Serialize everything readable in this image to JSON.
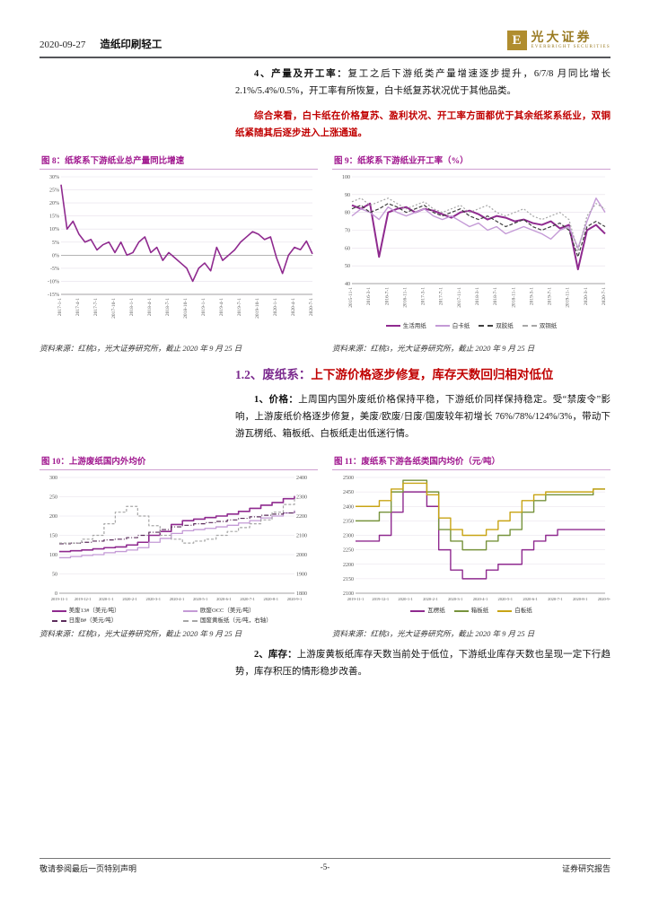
{
  "header": {
    "date": "2020-09-27",
    "category": "造纸印刷轻工",
    "brand_letter": "E",
    "brand_cn": "光大证券",
    "brand_en": "EVERBRIGHT SECURITIES",
    "brand_color": "#9a7b23"
  },
  "body": {
    "p1_label": "4、产量及开工率：",
    "p1_text": "复工之后下游纸类产量增速逐步提升，6/7/8 月同比增长 2.1%/5.4%/0.5%，开工率有所恢复，白卡纸复苏状况优于其他品类。",
    "p2_text": "综合来看，白卡纸在价格复苏、盈利状况、开工率方面都优于其余纸浆系纸业，双铜纸紧随其后逐步进入上涨通道。",
    "section_prefix": "1.2、废纸系：",
    "section_title": "上下游价格逐步修复，库存天数回归相对低位",
    "p3_label": "1、价格：",
    "p3_text": "上周国内国外废纸价格保持平稳，下游纸价同样保持稳定。受“禁废令”影响，上游废纸价格逐步修复，美废/欧废/日废/国废较年初增长 76%/78%/124%/3%，带动下游瓦楞纸、箱板纸、白板纸走出低迷行情。",
    "p4_label": "2、库存：",
    "p4_text": "上游废黄板纸库存天数当前处于低位，下游纸业库存天数也呈现一定下行趋势，库存积压的情形稳步改善。"
  },
  "figures": [
    {
      "title": "图 8：纸浆系下游纸业总产量同比增速",
      "source": "资料来源：红桃3，光大证券研究所，截止 2020 年 9 月 25 日"
    },
    {
      "title": "图 9：纸浆系下游纸业开工率（%）",
      "source": "资料来源：红桃3，光大证券研究所，截止 2020 年 9 月 25 日"
    },
    {
      "title": "图 10：上游废纸国内外均价",
      "source": "资料来源：红桃3，光大证券研究所，截止 2020 年 9 月 25 日"
    },
    {
      "title": "图 11：废纸系下游各纸类国内均价（元/吨）",
      "source": "资料来源：红桃3，光大证券研究所，截止 2020 年 9 月 25 日"
    }
  ],
  "footer": {
    "left": "敬请参阅最后一页特别声明",
    "center": "-5-",
    "right": "证券研究报告"
  },
  "chart_data": [
    {
      "type": "line",
      "title": "纸浆系下游纸业总产量同比增速",
      "x_labels": [
        "2017-1-1",
        "2017-4-1",
        "2017-7-1",
        "2017-10-1",
        "2018-1-1",
        "2018-4-1",
        "2018-7-1",
        "2018-10-1",
        "2019-1-1",
        "2019-4-1",
        "2019-7-1",
        "2019-10-1",
        "2020-1-1",
        "2020-4-1",
        "2020-7-1"
      ],
      "ylim": [
        -15,
        30
      ],
      "ytick_step": 5,
      "y_format": "percent",
      "rotate_x": true,
      "legend": false,
      "series": [
        {
          "name": "总产量同比增速",
          "color": "#8f2a8f",
          "width": 1.6,
          "values": [
            27,
            10,
            13,
            8,
            5,
            6,
            2,
            4,
            5,
            1,
            5,
            0,
            1,
            5,
            7,
            1,
            3,
            -2,
            1,
            -1,
            -3,
            -5,
            -10,
            -5,
            -3,
            -6,
            3,
            -2,
            0,
            2,
            5,
            7,
            9,
            8,
            6,
            7,
            -1,
            -7,
            0,
            3,
            2.1,
            5.4,
            0.5
          ]
        }
      ]
    },
    {
      "type": "line",
      "title": "纸浆系下游纸业开工率（%）",
      "x_labels": [
        "2015-11-1",
        "2016-3-1",
        "2016-7-1",
        "2016-11-1",
        "2017-3-1",
        "2017-7-1",
        "2017-11-1",
        "2018-3-1",
        "2018-7-1",
        "2018-11-1",
        "2019-3-1",
        "2019-7-1",
        "2019-11-1",
        "2020-3-1",
        "2020-7-1"
      ],
      "ylim": [
        40,
        100
      ],
      "ytick_step": 10,
      "rotate_x": true,
      "legend": true,
      "series": [
        {
          "name": "生活用纸",
          "color": "#8f2a8f",
          "width": 2,
          "values": [
            84,
            82,
            85,
            55,
            80,
            82,
            83,
            80,
            82,
            81,
            79,
            77,
            80,
            81,
            79,
            76,
            78,
            77,
            75,
            76,
            74,
            73,
            75,
            71,
            73,
            48,
            70,
            73,
            68
          ]
        },
        {
          "name": "白卡纸",
          "color": "#c49ad6",
          "width": 1.4,
          "values": [
            78,
            82,
            80,
            76,
            83,
            80,
            78,
            80,
            82,
            78,
            76,
            78,
            75,
            72,
            74,
            70,
            72,
            68,
            70,
            72,
            70,
            68,
            65,
            70,
            72,
            60,
            75,
            88,
            80
          ]
        },
        {
          "name": "双胶纸",
          "color": "#3f3f3f",
          "dash": "4 2",
          "width": 1.2,
          "values": [
            82,
            84,
            80,
            82,
            85,
            83,
            80,
            82,
            84,
            80,
            78,
            80,
            82,
            78,
            76,
            78,
            75,
            72,
            74,
            76,
            72,
            70,
            72,
            74,
            70,
            55,
            72,
            75,
            72
          ]
        },
        {
          "name": "双铜纸",
          "color": "#a6a6a6",
          "dash": "2 2",
          "width": 1.2,
          "values": [
            86,
            88,
            84,
            86,
            88,
            85,
            82,
            84,
            86,
            82,
            80,
            82,
            84,
            80,
            82,
            84,
            80,
            78,
            80,
            82,
            78,
            76,
            78,
            80,
            76,
            58,
            78,
            85,
            82
          ]
        }
      ]
    },
    {
      "type": "line",
      "title": "上游废纸国内外均价",
      "step": true,
      "x_labels": [
        "2019-11-1",
        "2019-12-1",
        "2020-1-1",
        "2020-2-1",
        "2020-3-1",
        "2020-4-1",
        "2020-5-1",
        "2020-6-1",
        "2020-7-1",
        "2020-8-1",
        "2020-9-1"
      ],
      "ylim": [
        0,
        300
      ],
      "ytick_step": 50,
      "ylim_right": [
        1800,
        2400
      ],
      "ytick_step_right": 100,
      "legend": true,
      "legend_cols": 2,
      "series": [
        {
          "name": "美废13#（美元/吨）",
          "color": "#8f2a8f",
          "width": 1.6,
          "values": [
            108,
            110,
            112,
            115,
            118,
            120,
            125,
            132,
            150,
            160,
            178,
            188,
            192,
            196,
            200,
            205,
            212,
            220,
            228,
            235,
            245,
            252
          ]
        },
        {
          "name": "欧废OCC（美元/吨）",
          "color": "#c49ad6",
          "width": 1.3,
          "values": [
            92,
            95,
            98,
            100,
            105,
            108,
            112,
            118,
            132,
            142,
            155,
            162,
            165,
            168,
            172,
            176,
            182,
            188,
            195,
            200,
            208,
            215
          ]
        },
        {
          "name": "日废8#（美元/吨）",
          "color": "#5b2d5b",
          "dash": "5 2 1 2",
          "width": 1.2,
          "values": [
            128,
            130,
            132,
            135,
            138,
            140,
            144,
            150,
            158,
            165,
            172,
            176,
            180,
            183,
            186,
            190,
            194,
            198,
            202,
            205,
            208,
            212
          ]
        },
        {
          "name": "国废黄板纸（元/吨，右轴）",
          "color": "#a6a6a6",
          "dash": "3 2",
          "width": 1.2,
          "axis": "right",
          "values": [
            2060,
            2060,
            2080,
            2100,
            2160,
            2220,
            2250,
            2200,
            2150,
            2100,
            2080,
            2060,
            2070,
            2080,
            2100,
            2120,
            2140,
            2160,
            2180,
            2220,
            2260,
            2300
          ]
        }
      ]
    },
    {
      "type": "line",
      "title": "废纸系下游各纸类国内均价（元/吨）",
      "step": true,
      "x_labels": [
        "2019-11-1",
        "2019-12-1",
        "2020-1-1",
        "2020-2-1",
        "2020-3-1",
        "2020-4-1",
        "2020-5-1",
        "2020-6-1",
        "2020-7-1",
        "2020-8-1",
        "2020-9-1"
      ],
      "ylim": [
        2100,
        2500
      ],
      "ytick_step": 50,
      "legend": true,
      "series": [
        {
          "name": "瓦楞纸",
          "color": "#8f2a8f",
          "width": 1.4,
          "values": [
            2280,
            2280,
            2300,
            2380,
            2450,
            2450,
            2400,
            2250,
            2180,
            2150,
            2150,
            2180,
            2200,
            2200,
            2250,
            2280,
            2300,
            2320,
            2320,
            2320,
            2320,
            2320
          ]
        },
        {
          "name": "箱板纸",
          "color": "#77933c",
          "width": 1.4,
          "values": [
            2350,
            2350,
            2380,
            2450,
            2490,
            2490,
            2450,
            2320,
            2280,
            2250,
            2250,
            2280,
            2300,
            2320,
            2380,
            2420,
            2440,
            2440,
            2440,
            2440,
            2460,
            2460
          ]
        },
        {
          "name": "白板纸",
          "color": "#c8a415",
          "width": 1.4,
          "values": [
            2400,
            2400,
            2420,
            2460,
            2480,
            2480,
            2440,
            2360,
            2320,
            2300,
            2300,
            2320,
            2350,
            2380,
            2420,
            2440,
            2450,
            2450,
            2450,
            2450,
            2460,
            2460
          ]
        }
      ]
    }
  ]
}
